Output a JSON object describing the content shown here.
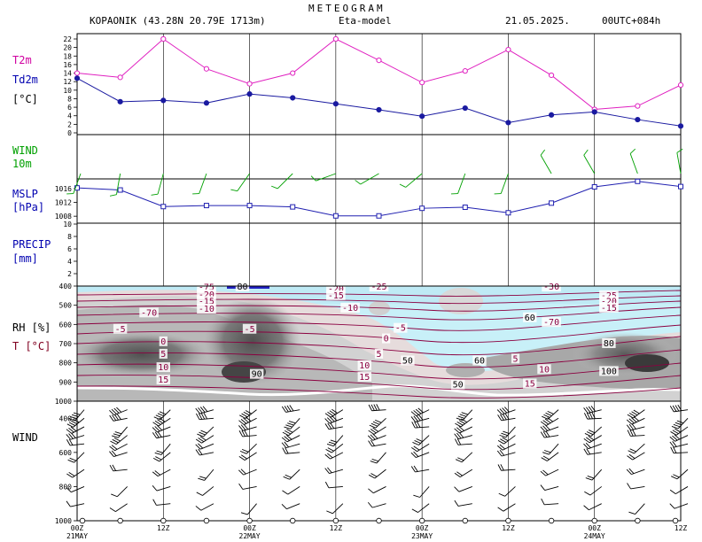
{
  "header": {
    "title": "METEOGRAM",
    "station": "KOPAONIK (43.28N 20.79E  1713m)",
    "model": "Eta-model",
    "date": "21.05.2025.",
    "run": "00UTC+084h"
  },
  "panel_labels": {
    "t2m": "T2m",
    "td2m": "Td2m",
    "unit_c": "[°C]",
    "wind": "WIND",
    "wind_10m": "10m",
    "mslp": "MSLP",
    "mslp_unit": "[hPa]",
    "precip": "PRECIP",
    "precip_unit": "[mm]",
    "rh": "RH [%]",
    "t_c": "T [°C]",
    "wind_profile": "WIND"
  },
  "colors": {
    "t2m": "#e020c0",
    "td2m": "#1a1aa0",
    "wind": "#00a000",
    "mslp": "#2020b0",
    "label_magenta": "#d000a0",
    "label_blue": "#0000b0",
    "label_green": "#00a000",
    "label_red": "#800020",
    "isotherm": "#8b0040"
  },
  "chart_data": [
    {
      "type": "line",
      "x": [
        0,
        6,
        12,
        18,
        24,
        30,
        36,
        42,
        48,
        54,
        60,
        66,
        72,
        78,
        84
      ],
      "series": [
        {
          "name": "T2m",
          "values": [
            14,
            13,
            22,
            15,
            11.5,
            14,
            22,
            17,
            11.8,
            14.5,
            19.5,
            13.5,
            5.5,
            6.3,
            11.2
          ]
        },
        {
          "name": "Td2m",
          "values": [
            12.8,
            7.3,
            7.6,
            7,
            9.1,
            8.2,
            6.8,
            5.4,
            3.9,
            5.8,
            2.4,
            4.2,
            4.9,
            3.1,
            1.6
          ]
        }
      ],
      "ylim": [
        0,
        22
      ],
      "yticks": [
        0,
        2,
        4,
        6,
        8,
        10,
        12,
        14,
        16,
        18,
        20,
        22
      ]
    },
    {
      "type": "line",
      "x": [
        0,
        6,
        12,
        18,
        24,
        30,
        36,
        42,
        48,
        54,
        60,
        66,
        72,
        78,
        84
      ],
      "series": [
        {
          "name": "MSLP",
          "values": [
            1016.2,
            1015.6,
            1010.8,
            1011.1,
            1011.1,
            1010.7,
            1008.1,
            1008.1,
            1010.3,
            1010.6,
            1009,
            1011.8,
            1016.5,
            1018.1,
            1016.6
          ]
        }
      ],
      "yticks": [
        1008,
        1012,
        1016
      ]
    },
    {
      "type": "bar",
      "x": [],
      "values": [],
      "ylim": [
        0,
        10
      ],
      "yticks": [
        2,
        4,
        6,
        8,
        10
      ]
    },
    {
      "type": "heatmap",
      "yticks": [
        400,
        500,
        600,
        700,
        800,
        900,
        1000
      ],
      "isotherm_labels": [
        {
          "text": "-75",
          "x": 18,
          "p": 408
        },
        {
          "text": "80",
          "x": 23,
          "p": 405
        },
        {
          "text": "-20",
          "x": 36,
          "p": 415
        },
        {
          "text": "-25",
          "x": 42,
          "p": 405
        },
        {
          "text": "-15",
          "x": 36,
          "p": 450
        },
        {
          "text": "-20",
          "x": 18,
          "p": 445
        },
        {
          "text": "-15",
          "x": 18,
          "p": 480
        },
        {
          "text": "-10",
          "x": 18,
          "p": 520
        },
        {
          "text": "-10",
          "x": 38,
          "p": 515
        },
        {
          "text": "-70",
          "x": 10,
          "p": 540
        },
        {
          "text": "-5",
          "x": 6,
          "p": 625
        },
        {
          "text": "-5",
          "x": 24,
          "p": 625
        },
        {
          "text": "-5",
          "x": 45,
          "p": 620
        },
        {
          "text": "0",
          "x": 12,
          "p": 690
        },
        {
          "text": "0",
          "x": 43,
          "p": 675
        },
        {
          "text": "5",
          "x": 12,
          "p": 755
        },
        {
          "text": "5",
          "x": 42,
          "p": 755
        },
        {
          "text": "5",
          "x": 61,
          "p": 780
        },
        {
          "text": "10",
          "x": 12,
          "p": 825
        },
        {
          "text": "10",
          "x": 40,
          "p": 815
        },
        {
          "text": "10",
          "x": 65,
          "p": 835
        },
        {
          "text": "15",
          "x": 12,
          "p": 890
        },
        {
          "text": "15",
          "x": 40,
          "p": 875
        },
        {
          "text": "15",
          "x": 63,
          "p": 910
        },
        {
          "text": "50",
          "x": 46,
          "p": 790
        },
        {
          "text": "60",
          "x": 56,
          "p": 790
        },
        {
          "text": "50",
          "x": 53,
          "p": 915
        },
        {
          "text": "60",
          "x": 63,
          "p": 565
        },
        {
          "text": "-70",
          "x": 66,
          "p": 590
        },
        {
          "text": "80",
          "x": 74,
          "p": 700
        },
        {
          "text": "100",
          "x": 74,
          "p": 845
        },
        {
          "text": "90",
          "x": 25,
          "p": 860
        },
        {
          "text": "-25",
          "x": 74,
          "p": 450
        },
        {
          "text": "-20",
          "x": 74,
          "p": 480
        },
        {
          "text": "-15",
          "x": 74,
          "p": 515
        },
        {
          "text": "-30",
          "x": 66,
          "p": 405
        }
      ]
    }
  ],
  "wind_profile": {
    "yticks": [
      "400",
      "600",
      "800",
      "1000"
    ]
  },
  "x_axis": {
    "ticks": [
      "00Z",
      "12Z",
      "00Z",
      "12Z",
      "00Z",
      "12Z",
      "00Z",
      "12Z"
    ],
    "dates": [
      "21MAY",
      "22MAY",
      "23MAY",
      "24MAY"
    ]
  }
}
